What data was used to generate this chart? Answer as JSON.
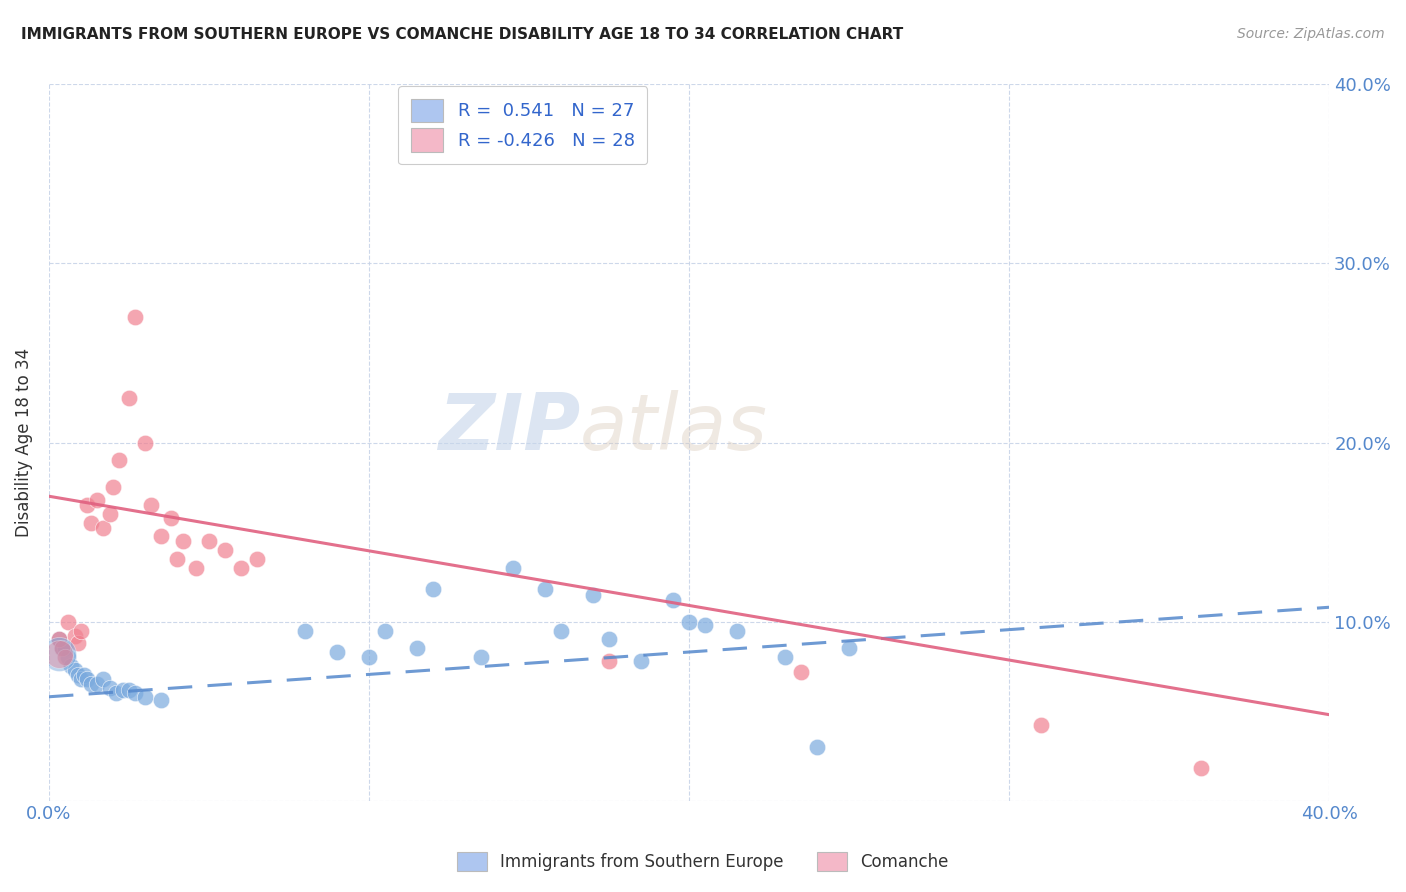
{
  "title": "IMMIGRANTS FROM SOUTHERN EUROPE VS COMANCHE DISABILITY AGE 18 TO 34 CORRELATION CHART",
  "source": "Source: ZipAtlas.com",
  "ylabel": "Disability Age 18 to 34",
  "xlim": [
    0.0,
    0.4
  ],
  "ylim": [
    0.0,
    0.4
  ],
  "legend_color1": "#aec6f0",
  "legend_color2": "#f4b8c8",
  "blue_color": "#7baade",
  "pink_color": "#f08090",
  "watermark_zip": "ZIP",
  "watermark_atlas": "atlas",
  "blue_scatter_x": [
    0.003,
    0.004,
    0.005,
    0.006,
    0.007,
    0.008,
    0.009,
    0.01,
    0.011,
    0.012,
    0.013,
    0.015,
    0.017,
    0.019,
    0.021,
    0.023,
    0.025,
    0.027,
    0.03,
    0.035,
    0.08,
    0.09,
    0.1,
    0.105,
    0.115,
    0.12,
    0.135,
    0.145,
    0.155,
    0.16,
    0.17,
    0.175,
    0.185,
    0.195,
    0.2,
    0.205,
    0.215,
    0.23,
    0.24,
    0.25
  ],
  "blue_scatter_y": [
    0.09,
    0.085,
    0.085,
    0.08,
    0.075,
    0.073,
    0.07,
    0.068,
    0.07,
    0.068,
    0.065,
    0.065,
    0.068,
    0.063,
    0.06,
    0.062,
    0.062,
    0.06,
    0.058,
    0.056,
    0.095,
    0.083,
    0.08,
    0.095,
    0.085,
    0.118,
    0.08,
    0.13,
    0.118,
    0.095,
    0.115,
    0.09,
    0.078,
    0.112,
    0.1,
    0.098,
    0.095,
    0.08,
    0.03,
    0.085
  ],
  "pink_scatter_x": [
    0.003,
    0.004,
    0.005,
    0.006,
    0.008,
    0.009,
    0.01,
    0.012,
    0.013,
    0.015,
    0.017,
    0.019,
    0.02,
    0.022,
    0.025,
    0.027,
    0.03,
    0.032,
    0.035,
    0.038,
    0.04,
    0.042,
    0.046,
    0.05,
    0.055,
    0.06,
    0.065,
    0.175,
    0.235,
    0.31,
    0.36
  ],
  "pink_scatter_y": [
    0.09,
    0.085,
    0.08,
    0.1,
    0.092,
    0.088,
    0.095,
    0.165,
    0.155,
    0.168,
    0.152,
    0.16,
    0.175,
    0.19,
    0.225,
    0.27,
    0.2,
    0.165,
    0.148,
    0.158,
    0.135,
    0.145,
    0.13,
    0.145,
    0.14,
    0.13,
    0.135,
    0.078,
    0.072,
    0.042,
    0.018
  ],
  "blue_trend_x": [
    0.0,
    0.4
  ],
  "blue_trend_y": [
    0.058,
    0.108
  ],
  "pink_trend_x": [
    0.0,
    0.4
  ],
  "pink_trend_y": [
    0.17,
    0.048
  ]
}
